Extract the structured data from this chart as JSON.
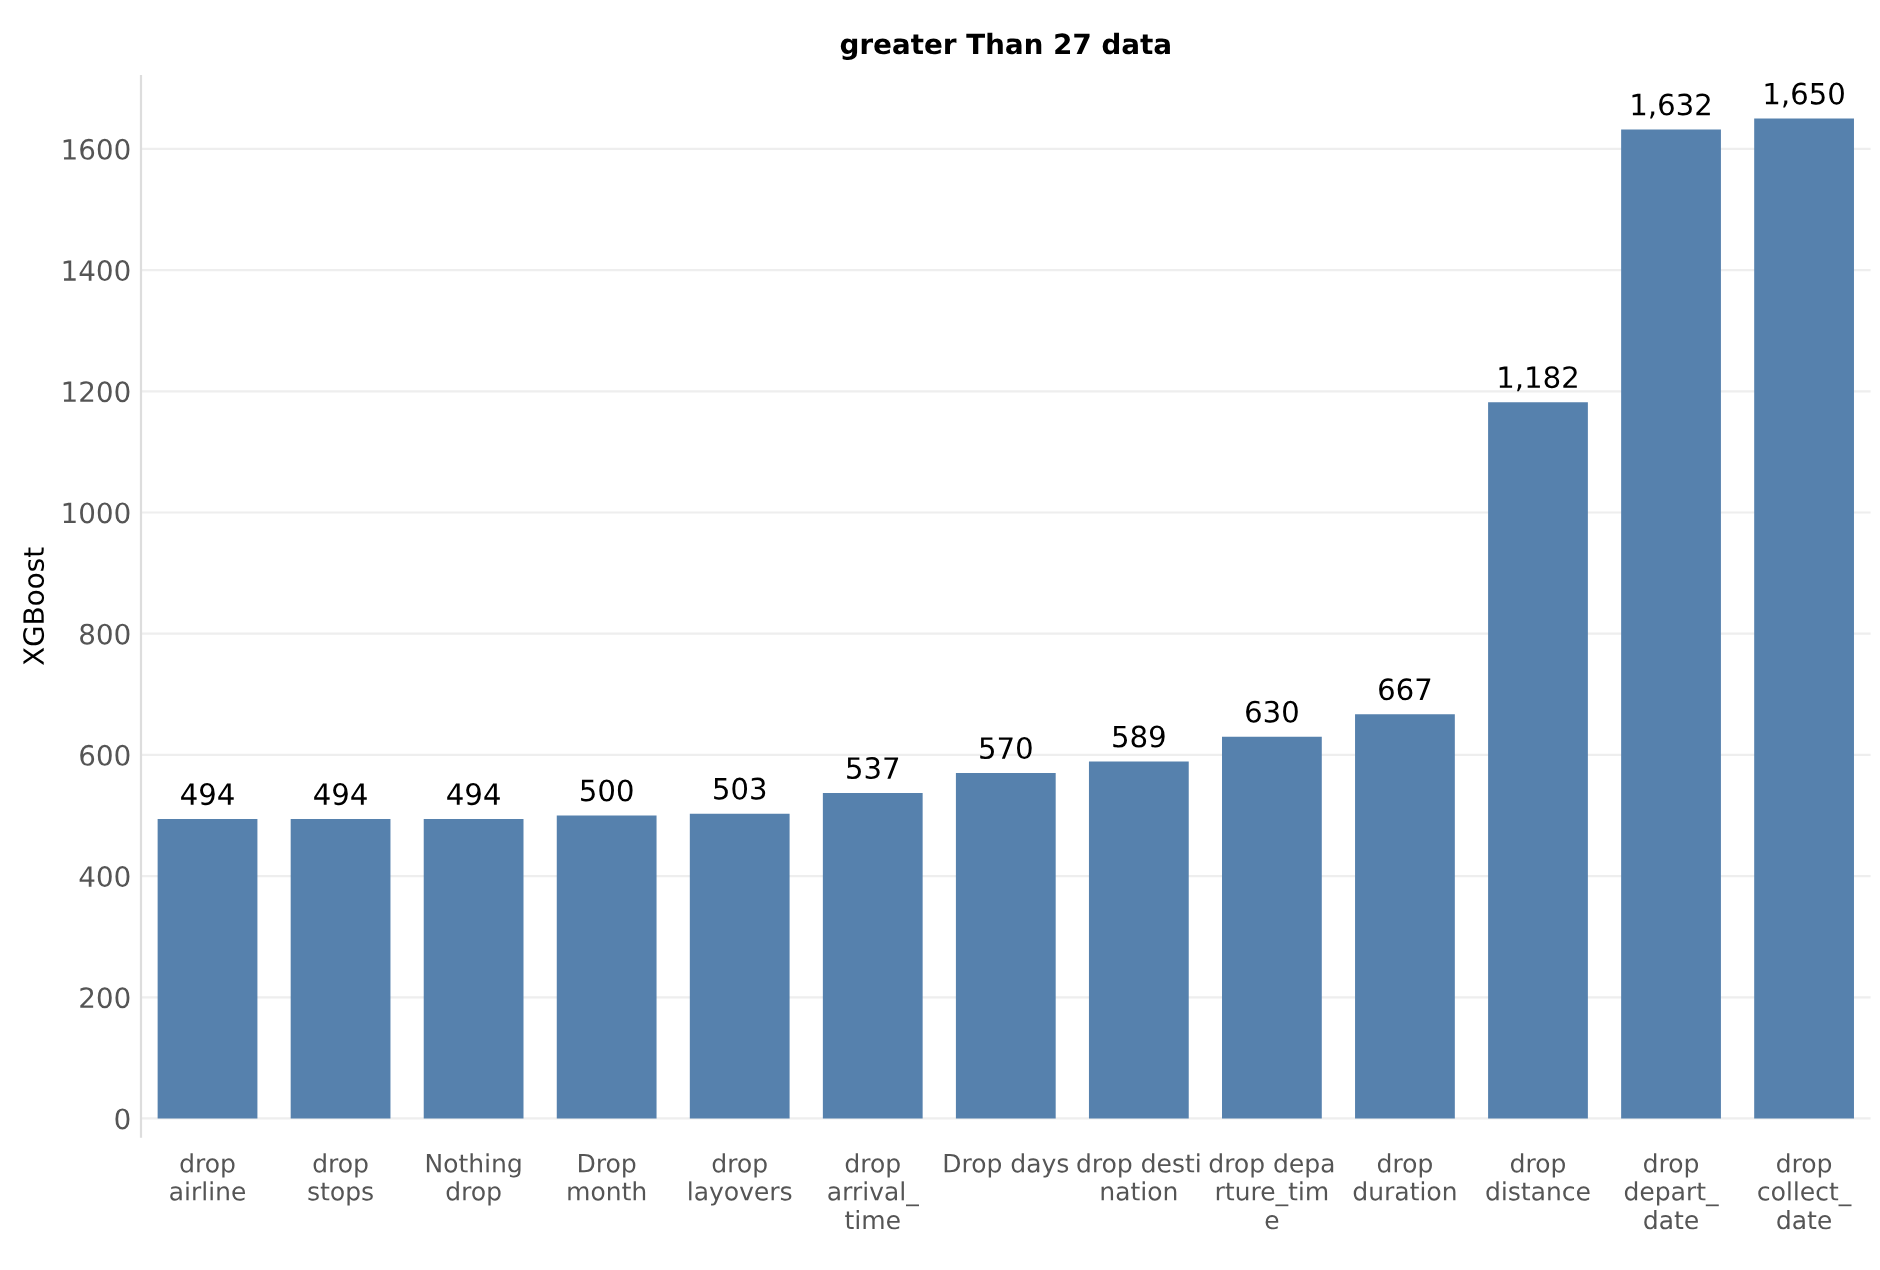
{
  "chart_data": {
    "type": "bar",
    "title": "greater Than 27 data",
    "ylabel": "XGBoost",
    "categories": [
      "drop\nairline",
      "drop\nstops",
      "Nothing\ndrop",
      "Drop\nmonth",
      "drop\nlayovers",
      "drop\narrival_\ntime",
      "Drop days",
      "drop desti\nnation",
      "drop depa\nrture_tim\ne",
      "drop\nduration",
      "drop\ndistance",
      "drop\ndepart_\ndate",
      "drop\ncollect_\ndate"
    ],
    "values": [
      494,
      494,
      494,
      500,
      503,
      537,
      570,
      589,
      630,
      667,
      1182,
      1632,
      1650
    ],
    "value_labels": [
      "494",
      "494",
      "494",
      "500",
      "503",
      "537",
      "570",
      "589",
      "630",
      "667",
      "1,182",
      "1,632",
      "1,650"
    ],
    "color": "#5681ad",
    "ylim": [
      -30,
      1720
    ],
    "yticks": [
      0,
      200,
      400,
      600,
      800,
      1000,
      1200,
      1400,
      1600
    ],
    "grid": "y"
  }
}
